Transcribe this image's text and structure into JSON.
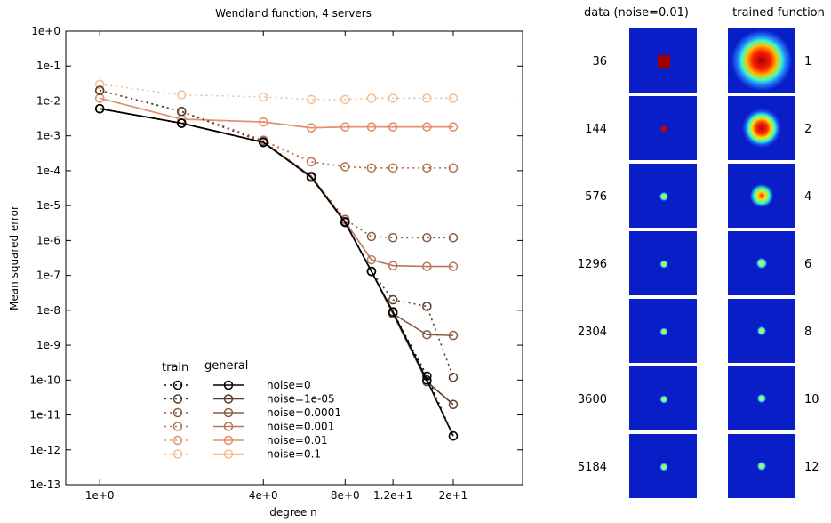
{
  "chart_data": {
    "type": "line",
    "title": "Wendland function, 4 servers",
    "xlabel": "degree n",
    "ylabel": "Mean squared error",
    "x_scale": "log",
    "y_scale": "log",
    "xlim": [
      0.75,
      36
    ],
    "ylim": [
      1e-13,
      1
    ],
    "x_ticks": [
      {
        "value": 1,
        "label": "1e+0"
      },
      {
        "value": 4,
        "label": "4e+0"
      },
      {
        "value": 8,
        "label": "8e+0"
      },
      {
        "value": 12,
        "label": "1.2e+1"
      },
      {
        "value": 20,
        "label": "2e+1"
      }
    ],
    "y_ticks": [
      {
        "value": 1,
        "label": "1e+0"
      },
      {
        "value": 0.1,
        "label": "1e-1"
      },
      {
        "value": 0.01,
        "label": "1e-2"
      },
      {
        "value": 0.001,
        "label": "1e-3"
      },
      {
        "value": 0.0001,
        "label": "1e-4"
      },
      {
        "value": 1e-05,
        "label": "1e-5"
      },
      {
        "value": 1e-06,
        "label": "1e-6"
      },
      {
        "value": 1e-07,
        "label": "1e-7"
      },
      {
        "value": 1e-08,
        "label": "1e-8"
      },
      {
        "value": 1e-09,
        "label": "1e-9"
      },
      {
        "value": 1e-10,
        "label": "1e-10"
      },
      {
        "value": 1e-11,
        "label": "1e-11"
      },
      {
        "value": 1e-12,
        "label": "1e-12"
      },
      {
        "value": 1e-13,
        "label": "1e-13"
      }
    ],
    "x": [
      1,
      2,
      4,
      6,
      8,
      10,
      12,
      16,
      20
    ],
    "legend_headers": {
      "train": "train",
      "general": "general"
    },
    "legend_placement": "lower-left",
    "series": [
      {
        "name": "noise=0",
        "color": "#000000",
        "train": [
          0.006,
          0.0023,
          0.00065,
          6.5e-05,
          3.3e-06,
          1.3e-07,
          9e-09,
          1.3e-10,
          2.5e-12
        ],
        "general": [
          0.006,
          0.0023,
          0.00065,
          6.5e-05,
          3.3e-06,
          1.3e-07,
          9e-09,
          1e-10,
          2.5e-12
        ]
      },
      {
        "name": "noise=1e-05",
        "color": "#5a3d2e",
        "train": [
          0.02,
          0.005,
          0.00065,
          6.5e-05,
          3.5e-06,
          1.3e-07,
          2e-08,
          1.3e-08,
          1.2e-10
        ],
        "general": [
          0.006,
          0.0023,
          0.00065,
          6.5e-05,
          3.3e-06,
          1.3e-07,
          8e-09,
          9e-11,
          2e-11
        ]
      },
      {
        "name": "noise=0.0001",
        "color": "#8a5d45",
        "train": [
          0.02,
          0.005,
          0.0007,
          7e-05,
          4e-06,
          1.3e-06,
          1.2e-06,
          1.2e-06,
          1.2e-06
        ],
        "general": [
          0.006,
          0.0023,
          0.00065,
          6.5e-05,
          3.3e-06,
          1.3e-07,
          8e-09,
          2e-09,
          1.9e-09
        ]
      },
      {
        "name": "noise=0.001",
        "color": "#b8775a",
        "train": [
          0.02,
          0.005,
          0.00075,
          0.00018,
          0.00013,
          0.00012,
          0.00012,
          0.00012,
          0.00012
        ],
        "general": [
          0.006,
          0.0023,
          0.00065,
          7e-05,
          3.5e-06,
          2.8e-07,
          1.9e-07,
          1.8e-07,
          1.8e-07
        ]
      },
      {
        "name": "noise=0.01",
        "color": "#e0906a",
        "train": [
          0.02,
          0.005,
          0.0007,
          0.00018,
          0.00013,
          0.00012,
          0.00012,
          0.00012,
          0.00012
        ],
        "general": [
          0.012,
          0.003,
          0.0025,
          0.0017,
          0.0018,
          0.0018,
          0.0018,
          0.0018,
          0.0018
        ]
      },
      {
        "name": "noise=0.1",
        "color": "#f6bd8f",
        "train": [
          0.03,
          0.015,
          0.013,
          0.011,
          0.011,
          0.012,
          0.012,
          0.012,
          0.012
        ],
        "general": [
          0.012,
          0.003,
          0.0025,
          0.0017,
          0.0018,
          0.0018,
          0.0018,
          0.0018,
          0.0018
        ]
      }
    ]
  },
  "panels": {
    "data_header": "data (noise=0.01)",
    "trained_header": "trained function",
    "rows": [
      {
        "samples": "36",
        "degree": "1"
      },
      {
        "samples": "144",
        "degree": "2"
      },
      {
        "samples": "576",
        "degree": "4"
      },
      {
        "samples": "1296",
        "degree": "6"
      },
      {
        "samples": "2304",
        "degree": "8"
      },
      {
        "samples": "3600",
        "degree": "10"
      },
      {
        "samples": "5184",
        "degree": "12"
      }
    ]
  },
  "colors": {
    "panel_background": "#0a1ec8",
    "hot_center": "#a00000",
    "ring_red": "#ff2000",
    "ring_yellow": "#ffe000",
    "ring_cyan": "#30ffd0"
  }
}
